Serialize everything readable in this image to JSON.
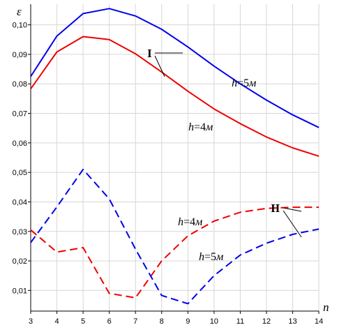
{
  "chart_data": {
    "type": "line",
    "ylabel": "ε",
    "xlabel": "n",
    "xlim": [
      3,
      14
    ],
    "ylim": [
      0.003,
      0.107
    ],
    "grid": true,
    "x": [
      3,
      4,
      5,
      6,
      7,
      8,
      9,
      10,
      11,
      12,
      13,
      14
    ],
    "xticks": [
      "3",
      "4",
      "5",
      "6",
      "7",
      "8",
      "9",
      "10",
      "11",
      "12",
      "13",
      "14"
    ],
    "yticks": [
      {
        "value": 0.01,
        "label": "0,01"
      },
      {
        "value": 0.02,
        "label": "0,02"
      },
      {
        "value": 0.03,
        "label": "0,03"
      },
      {
        "value": 0.04,
        "label": "0,04"
      },
      {
        "value": 0.05,
        "label": "0,05"
      },
      {
        "value": 0.06,
        "label": "0,06"
      },
      {
        "value": 0.07,
        "label": "0,07"
      },
      {
        "value": 0.08,
        "label": "0,08"
      },
      {
        "value": 0.09,
        "label": "0,09"
      },
      {
        "value": 0.1,
        "label": "0,10"
      }
    ],
    "series": [
      {
        "group": "I",
        "color": "#0000ee",
        "dash": false,
        "values": [
          0.0825,
          0.0962,
          0.1038,
          0.1055,
          0.103,
          0.0985,
          0.0925,
          0.086,
          0.08,
          0.0745,
          0.0695,
          0.0652
        ]
      },
      {
        "group": "I",
        "color": "#ee0000",
        "dash": false,
        "values": [
          0.0783,
          0.0908,
          0.096,
          0.095,
          0.0902,
          0.084,
          0.0775,
          0.0715,
          0.0665,
          0.062,
          0.0583,
          0.0555
        ]
      },
      {
        "group": "II",
        "color": "#ee0000",
        "dash": true,
        "values": [
          0.0305,
          0.023,
          0.0245,
          0.009,
          0.0075,
          0.02,
          0.0285,
          0.0335,
          0.0365,
          0.0378,
          0.0382,
          0.0382
        ]
      },
      {
        "group": "II",
        "color": "#0000ee",
        "dash": true,
        "values": [
          0.0262,
          0.0383,
          0.051,
          0.041,
          0.024,
          0.0083,
          0.0055,
          0.015,
          0.022,
          0.026,
          0.029,
          0.0308
        ]
      }
    ],
    "annotations": [
      {
        "id": "label-I",
        "text": "I",
        "style": "roman"
      },
      {
        "id": "label-II",
        "text": "II",
        "style": "roman"
      },
      {
        "id": "label-h5-upper",
        "h": "h",
        "eq": "=5",
        "unit": "м"
      },
      {
        "id": "label-h4-upper",
        "h": "h",
        "eq": "=4",
        "unit": "м"
      },
      {
        "id": "label-h4-lower",
        "h": "h",
        "eq": "=4",
        "unit": "м"
      },
      {
        "id": "label-h5-lower",
        "h": "h",
        "eq": "=5",
        "unit": "м"
      }
    ]
  }
}
